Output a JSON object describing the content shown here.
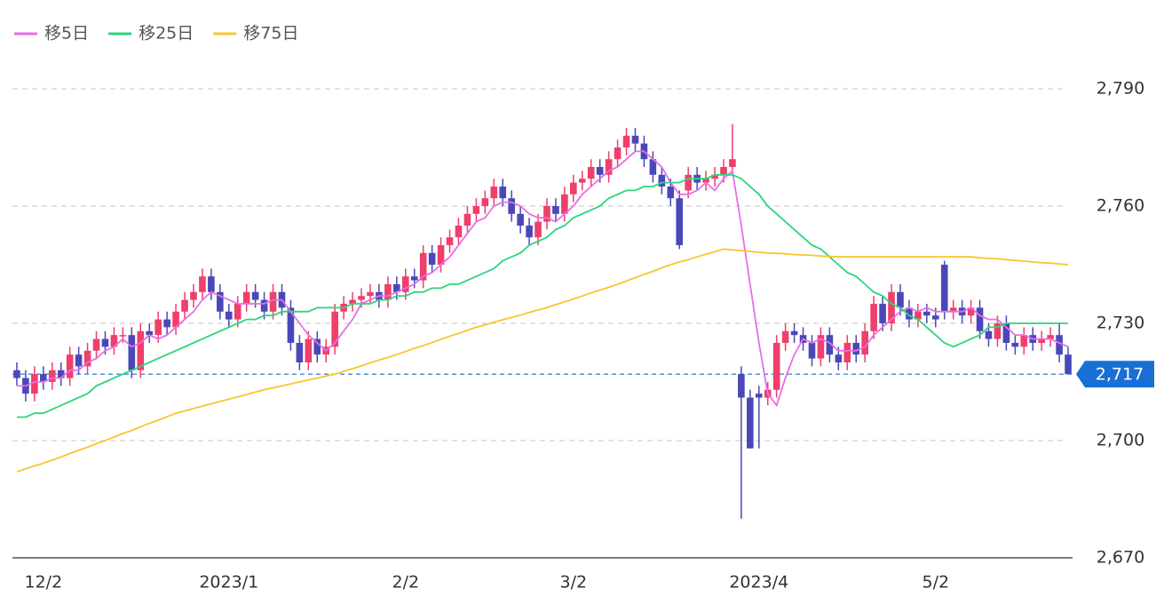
{
  "chart_data": {
    "type": "candlestick",
    "categories": [
      null,
      null,
      null,
      "12/2",
      null,
      null,
      null,
      null,
      null,
      null,
      null,
      null,
      null,
      null,
      null,
      null,
      null,
      null,
      null,
      null,
      null,
      null,
      null,
      null,
      "2023/1",
      null,
      null,
      null,
      null,
      null,
      null,
      null,
      null,
      null,
      null,
      null,
      null,
      null,
      null,
      null,
      null,
      null,
      null,
      null,
      "2/2",
      null,
      null,
      null,
      null,
      null,
      null,
      null,
      null,
      null,
      null,
      null,
      null,
      null,
      null,
      null,
      null,
      null,
      null,
      "3/2",
      null,
      null,
      null,
      null,
      null,
      null,
      null,
      null,
      null,
      null,
      null,
      null,
      null,
      null,
      null,
      null,
      null,
      null,
      null,
      null,
      "2023/4",
      null,
      null,
      null,
      null,
      null,
      null,
      null,
      null,
      null,
      null,
      null,
      null,
      null,
      null,
      null,
      null,
      null,
      null,
      null,
      "5/2",
      null,
      null,
      null,
      null,
      null,
      null,
      null,
      null,
      null,
      null,
      null,
      null,
      null,
      null,
      null
    ],
    "open": [
      2718,
      2716,
      2712,
      2717,
      2715,
      2718,
      2716,
      2722,
      2719,
      2723,
      2726,
      2724,
      2727,
      2727,
      2718,
      2728,
      2727,
      2731,
      2729,
      2733,
      2736,
      2738,
      2742,
      2738,
      2733,
      2731,
      2735,
      2738,
      2736,
      2733,
      2738,
      2734,
      2725,
      2720,
      2726,
      2722,
      2724,
      2733,
      2735,
      2736,
      2737,
      2738,
      2736,
      2740,
      2738,
      2742,
      2741,
      2748,
      2745,
      2750,
      2752,
      2755,
      2758,
      2760,
      2762,
      2765,
      2762,
      2758,
      2755,
      2752,
      2756,
      2760,
      2758,
      2763,
      2766,
      2767,
      2770,
      2768,
      2772,
      2775,
      2778,
      2776,
      2772,
      2768,
      2765,
      2762,
      2764,
      2768,
      2766,
      2767,
      2768,
      2770,
      2717,
      2711,
      2712,
      2711,
      2713,
      2725,
      2728,
      2727,
      2725,
      2721,
      2727,
      2722,
      2720,
      2725,
      2722,
      2728,
      2735,
      2730,
      2738,
      2734,
      2731,
      2733,
      2732,
      2745,
      2733,
      2734,
      2732,
      2734,
      2728,
      2726,
      2730,
      2725,
      2724,
      2727,
      2725,
      2726,
      2727,
      2722
    ],
    "high": [
      2720,
      2718,
      2719,
      2719,
      2720,
      2720,
      2724,
      2724,
      2725,
      2728,
      2728,
      2729,
      2729,
      2729,
      2730,
      2730,
      2733,
      2733,
      2735,
      2738,
      2740,
      2744,
      2744,
      2740,
      2735,
      2737,
      2740,
      2740,
      2738,
      2740,
      2740,
      2736,
      2727,
      2728,
      2728,
      2726,
      2735,
      2737,
      2738,
      2739,
      2740,
      2740,
      2742,
      2742,
      2744,
      2744,
      2750,
      2750,
      2752,
      2754,
      2757,
      2760,
      2762,
      2764,
      2767,
      2767,
      2764,
      2760,
      2757,
      2758,
      2762,
      2762,
      2765,
      2768,
      2769,
      2772,
      2772,
      2774,
      2777,
      2780,
      2780,
      2778,
      2774,
      2770,
      2767,
      2764,
      2770,
      2770,
      2769,
      2770,
      2772,
      2781,
      2719,
      2713,
      2714,
      2715,
      2727,
      2730,
      2730,
      2729,
      2727,
      2729,
      2729,
      2724,
      2727,
      2727,
      2730,
      2737,
      2737,
      2740,
      2740,
      2736,
      2735,
      2735,
      2734,
      2746,
      2736,
      2736,
      2736,
      2736,
      2730,
      2732,
      2732,
      2727,
      2729,
      2729,
      2728,
      2729,
      2730,
      2724
    ],
    "low": [
      2714,
      2710,
      2710,
      2713,
      2713,
      2714,
      2714,
      2717,
      2717,
      2721,
      2722,
      2722,
      2725,
      2716,
      2716,
      2725,
      2725,
      2727,
      2727,
      2731,
      2734,
      2736,
      2736,
      2731,
      2729,
      2729,
      2733,
      2734,
      2731,
      2731,
      2732,
      2723,
      2718,
      2718,
      2720,
      2720,
      2722,
      2731,
      2733,
      2734,
      2735,
      2734,
      2734,
      2736,
      2736,
      2739,
      2739,
      2743,
      2743,
      2748,
      2750,
      2753,
      2756,
      2758,
      2760,
      2760,
      2756,
      2753,
      2750,
      2750,
      2754,
      2756,
      2756,
      2761,
      2764,
      2765,
      2766,
      2766,
      2770,
      2773,
      2774,
      2770,
      2766,
      2763,
      2760,
      2749,
      2762,
      2764,
      2764,
      2765,
      2766,
      2768,
      2680,
      2698,
      2698,
      2709,
      2711,
      2723,
      2725,
      2723,
      2719,
      2719,
      2720,
      2718,
      2718,
      2720,
      2720,
      2726,
      2728,
      2728,
      2732,
      2729,
      2729,
      2730,
      2729,
      2731,
      2731,
      2730,
      2730,
      2726,
      2724,
      2724,
      2723,
      2722,
      2722,
      2723,
      2723,
      2724,
      2720,
      2717
    ],
    "close": [
      2716,
      2712,
      2717,
      2715,
      2718,
      2716,
      2722,
      2719,
      2723,
      2726,
      2724,
      2727,
      2727,
      2718,
      2728,
      2727,
      2731,
      2729,
      2733,
      2736,
      2738,
      2742,
      2738,
      2733,
      2731,
      2735,
      2738,
      2736,
      2733,
      2738,
      2734,
      2725,
      2720,
      2726,
      2722,
      2724,
      2733,
      2735,
      2736,
      2737,
      2738,
      2736,
      2740,
      2738,
      2742,
      2741,
      2748,
      2745,
      2750,
      2752,
      2755,
      2758,
      2760,
      2762,
      2765,
      2762,
      2758,
      2755,
      2752,
      2756,
      2760,
      2758,
      2763,
      2766,
      2767,
      2770,
      2768,
      2772,
      2775,
      2778,
      2776,
      2772,
      2768,
      2765,
      2762,
      2750,
      2768,
      2766,
      2767,
      2768,
      2770,
      2772,
      2711,
      2698,
      2711,
      2713,
      2725,
      2728,
      2727,
      2725,
      2721,
      2727,
      2722,
      2720,
      2725,
      2722,
      2728,
      2735,
      2730,
      2738,
      2734,
      2731,
      2733,
      2732,
      2731,
      2733,
      2734,
      2732,
      2734,
      2728,
      2726,
      2730,
      2725,
      2724,
      2727,
      2725,
      2726,
      2727,
      2722,
      2717
    ],
    "up_color": "#ef3f6b",
    "down_color": "#4a48b8",
    "series": [
      {
        "name": "移5日",
        "color": "#e76ee6",
        "values": [
          2714,
          2714,
          2715,
          2715,
          2716,
          2716,
          2718,
          2718,
          2720,
          2721,
          2723,
          2724,
          2726,
          2724,
          2725,
          2727,
          2726,
          2727,
          2729,
          2731,
          2733,
          2736,
          2738,
          2737,
          2736,
          2735,
          2735,
          2735,
          2735,
          2736,
          2736,
          2733,
          2730,
          2727,
          2725,
          2723,
          2725,
          2728,
          2731,
          2735,
          2736,
          2737,
          2737,
          2738,
          2739,
          2740,
          2742,
          2743,
          2745,
          2747,
          2750,
          2753,
          2756,
          2757,
          2760,
          2761,
          2761,
          2760,
          2758,
          2757,
          2757,
          2756,
          2758,
          2760,
          2763,
          2765,
          2767,
          2769,
          2770,
          2772,
          2774,
          2774,
          2772,
          2770,
          2766,
          2763,
          2763,
          2764,
          2766,
          2764,
          2767,
          2769,
          2755,
          2740,
          2725,
          2712,
          2709,
          2716,
          2722,
          2726,
          2725,
          2726,
          2725,
          2723,
          2723,
          2723,
          2724,
          2727,
          2729,
          2731,
          2733,
          2734,
          2733,
          2734,
          2733,
          2733,
          2733,
          2733,
          2734,
          2732,
          2731,
          2731,
          2729,
          2727,
          2727,
          2726,
          2726,
          2726,
          2725,
          2724
        ]
      },
      {
        "name": "移25日",
        "color": "#2fd47b",
        "values": [
          2706,
          2706,
          2707,
          2707,
          2708,
          2709,
          2710,
          2711,
          2712,
          2714,
          2715,
          2716,
          2717,
          2718,
          2719,
          2720,
          2721,
          2722,
          2723,
          2724,
          2725,
          2726,
          2727,
          2728,
          2729,
          2730,
          2731,
          2731,
          2732,
          2732,
          2733,
          2733,
          2733,
          2733,
          2734,
          2734,
          2734,
          2734,
          2735,
          2735,
          2735,
          2736,
          2736,
          2737,
          2737,
          2738,
          2738,
          2739,
          2739,
          2740,
          2740,
          2741,
          2742,
          2743,
          2744,
          2746,
          2747,
          2748,
          2750,
          2751,
          2752,
          2754,
          2755,
          2757,
          2758,
          2759,
          2760,
          2762,
          2763,
          2764,
          2764,
          2765,
          2765,
          2766,
          2766,
          2766,
          2767,
          2767,
          2767,
          2768,
          2768,
          2768,
          2767,
          2765,
          2763,
          2760,
          2758,
          2756,
          2754,
          2752,
          2750,
          2749,
          2747,
          2745,
          2743,
          2742,
          2740,
          2738,
          2737,
          2735,
          2734,
          2732,
          2731,
          2729,
          2727,
          2725,
          2724,
          2725,
          2726,
          2727,
          2729,
          2729,
          2730,
          2730,
          2730,
          2730,
          2730,
          2730,
          2730,
          2730
        ]
      },
      {
        "name": "移75日",
        "color": "#f6c631",
        "values": [
          2692,
          2692.8,
          2693.5,
          2694.2,
          2695,
          2695.8,
          2696.7,
          2697.5,
          2698.3,
          2699.2,
          2700,
          2700.9,
          2701.8,
          2702.6,
          2703.5,
          2704.4,
          2705.2,
          2706.1,
          2707,
          2707.6,
          2708.2,
          2708.8,
          2709.4,
          2710,
          2710.6,
          2711.2,
          2711.8,
          2712.4,
          2713,
          2713.5,
          2714,
          2714.5,
          2715,
          2715.5,
          2716,
          2716.5,
          2717,
          2717.7,
          2718.4,
          2719.1,
          2719.9,
          2720.6,
          2721.3,
          2722,
          2722.8,
          2723.6,
          2724.3,
          2725.1,
          2725.9,
          2726.7,
          2727.4,
          2728.2,
          2729,
          2729.6,
          2730.3,
          2730.9,
          2731.5,
          2732.1,
          2732.8,
          2733.4,
          2734,
          2734.8,
          2735.5,
          2736.2,
          2737,
          2737.8,
          2738.5,
          2739.2,
          2740,
          2740.8,
          2741.7,
          2742.5,
          2743.3,
          2744.2,
          2745,
          2745.7,
          2746.3,
          2747,
          2747.7,
          2748.3,
          2749,
          2748.8,
          2748.6,
          2748.4,
          2748.2,
          2748,
          2747.9,
          2747.8,
          2747.6,
          2747.5,
          2747.4,
          2747.2,
          2747.1,
          2747,
          2747,
          2747,
          2747,
          2747,
          2747,
          2747,
          2747,
          2747,
          2747,
          2747,
          2747,
          2747,
          2747,
          2747,
          2747,
          2746.8,
          2746.6,
          2746.5,
          2746.3,
          2746.1,
          2745.9,
          2745.7,
          2745.5,
          2745.4,
          2745.2,
          2745
        ]
      }
    ],
    "ylim": [
      2670,
      2790
    ],
    "yticks": [
      {
        "value": 2670,
        "label": "2,670"
      },
      {
        "value": 2700,
        "label": "2,700"
      },
      {
        "value": 2730,
        "label": "2,730"
      },
      {
        "value": 2760,
        "label": "2,760"
      },
      {
        "value": 2790,
        "label": "2,790"
      }
    ],
    "grid": true,
    "last_price": {
      "value": 2717,
      "label": "2,717"
    },
    "last_price_color": "#1a6fd6"
  }
}
